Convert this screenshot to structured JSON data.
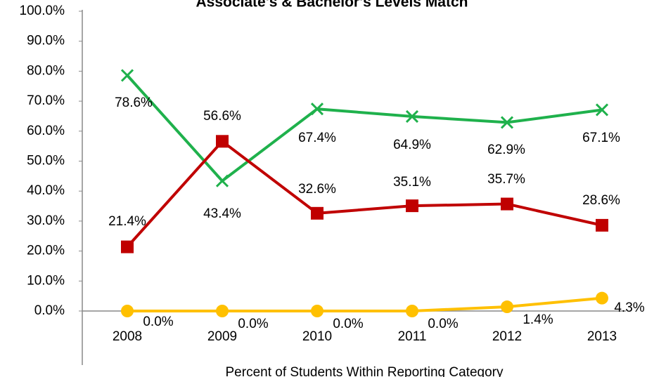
{
  "chart_data": {
    "type": "line",
    "title": "Associate's & Bachelor's Levels Match",
    "x_label": "Percent of Students Within Reporting Category",
    "categories": [
      "2008",
      "2009",
      "2010",
      "2011",
      "2012",
      "2013"
    ],
    "series": [
      {
        "color": "#1fb14c",
        "marker": "x",
        "values": [
          78.6,
          43.4,
          67.4,
          64.9,
          62.9,
          67.1
        ],
        "value_labels": [
          "78.6%",
          "43.4%",
          "67.4%",
          "64.9%",
          "62.9%",
          "67.1%"
        ]
      },
      {
        "color": "#c00000",
        "marker": "square",
        "values": [
          21.4,
          56.6,
          32.6,
          35.1,
          35.7,
          28.6
        ],
        "value_labels": [
          "21.4%",
          "56.6%",
          "32.6%",
          "35.1%",
          "35.7%",
          "28.6%"
        ]
      },
      {
        "color": "#ffc000",
        "marker": "circle",
        "values": [
          0,
          0,
          0,
          0,
          1.4,
          4.3
        ],
        "value_labels": [
          "0.0%",
          "0.0%",
          "0.0%",
          "0.0%",
          "1.4%",
          "4.3%"
        ]
      }
    ],
    "ylim": [
      0,
      100
    ],
    "yticks": [
      {
        "value": 0,
        "label": "0.0%"
      },
      {
        "value": 10,
        "label": "10.0%"
      },
      {
        "value": 20,
        "label": "20.0%"
      },
      {
        "value": 30,
        "label": "30.0%"
      },
      {
        "value": 40,
        "label": "40.0%"
      },
      {
        "value": 50,
        "label": "50.0%"
      },
      {
        "value": 60,
        "label": "60.0%"
      },
      {
        "value": 70,
        "label": "70.0%"
      },
      {
        "value": 80,
        "label": "80.0%"
      },
      {
        "value": 90,
        "label": "90.0%"
      },
      {
        "value": 100,
        "label": "100.0%"
      }
    ]
  }
}
